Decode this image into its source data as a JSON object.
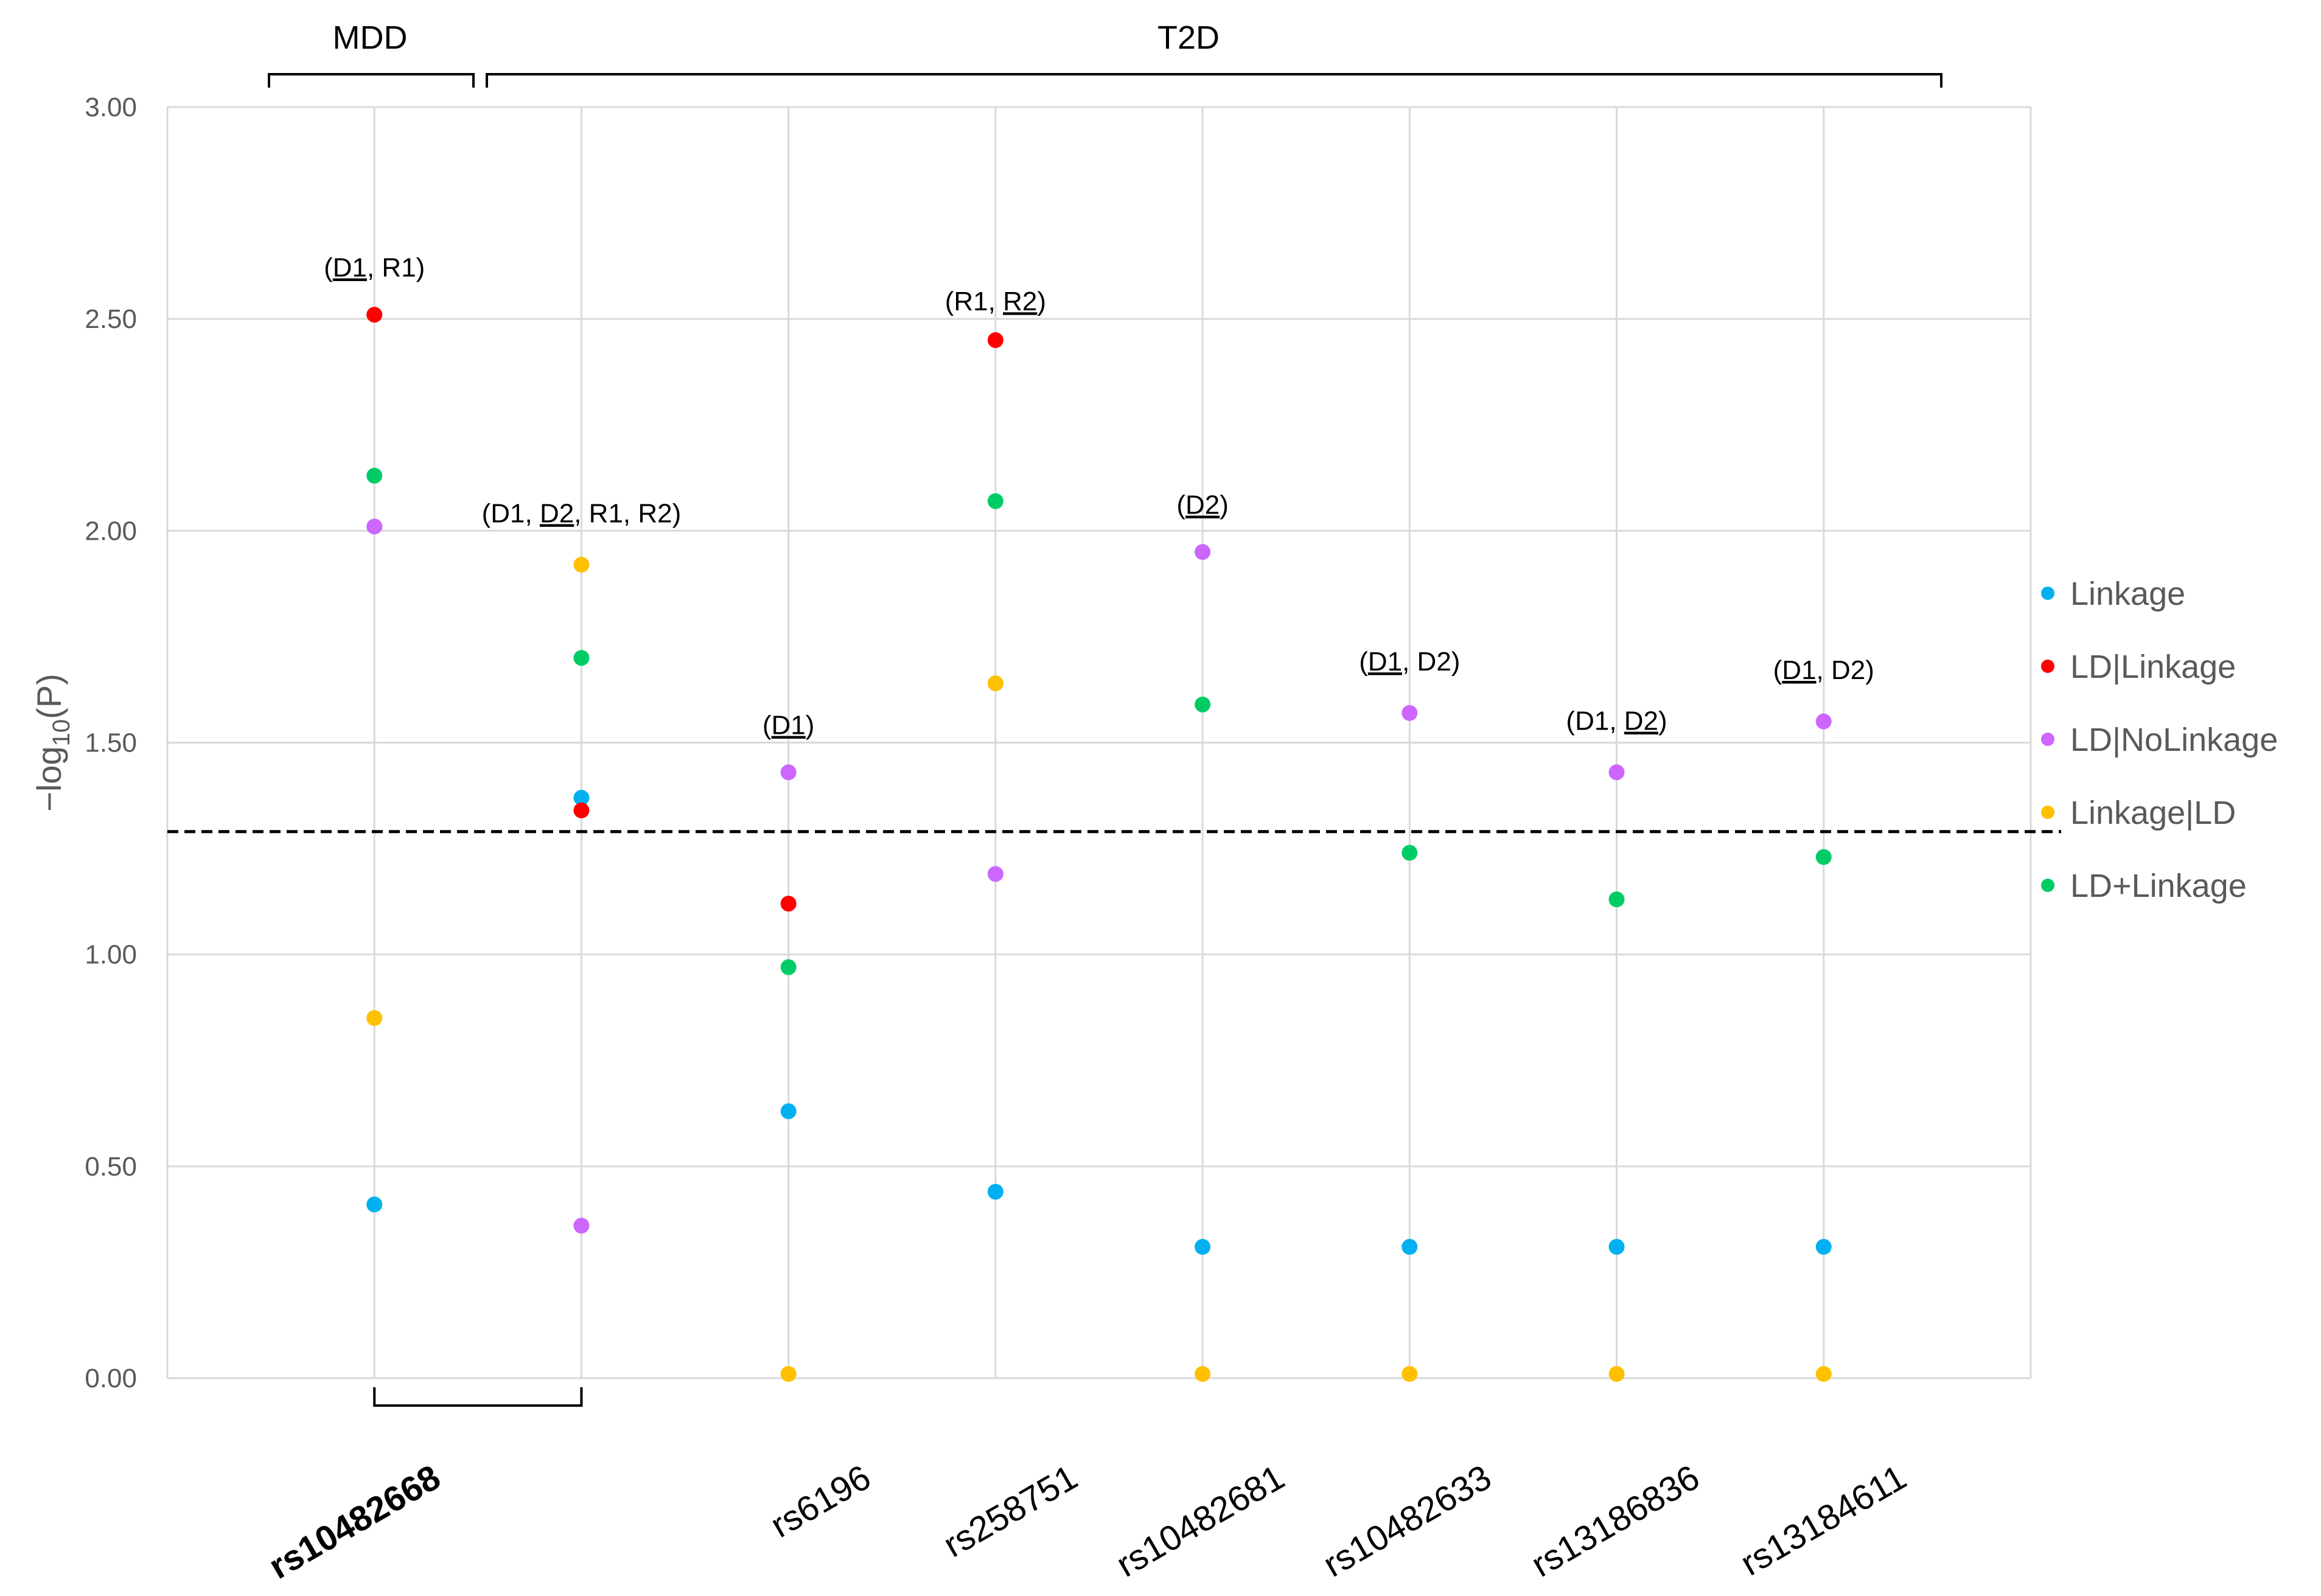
{
  "chart_data": {
    "type": "scatter",
    "ylabel": "-log10(P)",
    "ylabel_parts": {
      "main": "-log",
      "sub": "10",
      "tail": "(P)"
    },
    "ylim": [
      0,
      3
    ],
    "yticks": [
      "0.00",
      "0.50",
      "1.00",
      "1.50",
      "2.00",
      "2.50",
      "3.00"
    ],
    "ytick_values": [
      0,
      0.5,
      1,
      1.5,
      2,
      2.5,
      3
    ],
    "threshold": 1.29,
    "categories": [
      {
        "label": "rs10482668",
        "bold": true
      },
      {
        "label": "",
        "bold": false
      },
      {
        "label": "rs6196",
        "bold": false
      },
      {
        "label": "rs258751",
        "bold": false
      },
      {
        "label": "rs10482681",
        "bold": false
      },
      {
        "label": "rs10482633",
        "bold": false
      },
      {
        "label": "rs13186836",
        "bold": false
      },
      {
        "label": "rs13184611",
        "bold": false
      }
    ],
    "groups": [
      {
        "label": "MDD",
        "from": 0,
        "to": 0
      },
      {
        "label": "T2D",
        "from": 1,
        "to": 7
      }
    ],
    "series": [
      {
        "name": "Linkage",
        "color": "#00B0F0",
        "values": [
          0.41,
          1.37,
          0.63,
          0.44,
          0.31,
          0.31,
          0.31,
          0.31
        ]
      },
      {
        "name": "LD|Linkage",
        "color": "#FF0000",
        "values": [
          2.51,
          1.34,
          1.12,
          2.45,
          null,
          null,
          null,
          null
        ]
      },
      {
        "name": "LD|NoLinkage",
        "color": "#CC66FF",
        "values": [
          2.01,
          0.36,
          1.43,
          1.19,
          1.95,
          1.57,
          1.43,
          1.55
        ]
      },
      {
        "name": "Linkage|LD",
        "color": "#FFC000",
        "values": [
          0.85,
          1.92,
          0.01,
          1.64,
          0.01,
          0.01,
          0.01,
          0.01
        ]
      },
      {
        "name": "LD+Linkage",
        "color": "#00CC66",
        "values": [
          2.13,
          1.7,
          0.97,
          2.07,
          1.59,
          1.24,
          1.13,
          1.23
        ]
      }
    ],
    "annotations": [
      {
        "category": 0,
        "y": 2.6,
        "parts": [
          {
            "t": "(",
            "u": false
          },
          {
            "t": "D1",
            "u": true
          },
          {
            "t": ", R1)",
            "u": false
          }
        ]
      },
      {
        "category": 1,
        "y": 2.02,
        "parts": [
          {
            "t": "(D1, ",
            "u": false
          },
          {
            "t": "D2",
            "u": true
          },
          {
            "t": ", R1, R2)",
            "u": false
          }
        ]
      },
      {
        "category": 2,
        "y": 1.52,
        "parts": [
          {
            "t": "(",
            "u": false
          },
          {
            "t": "D1",
            "u": true
          },
          {
            "t": ")",
            "u": false
          }
        ]
      },
      {
        "category": 3,
        "y": 2.52,
        "parts": [
          {
            "t": "(R1, ",
            "u": false
          },
          {
            "t": "R2",
            "u": true
          },
          {
            "t": ")",
            "u": false
          }
        ]
      },
      {
        "category": 4,
        "y": 2.04,
        "parts": [
          {
            "t": "(",
            "u": false
          },
          {
            "t": "D2",
            "u": true
          },
          {
            "t": ")",
            "u": false
          }
        ]
      },
      {
        "category": 5,
        "y": 1.67,
        "parts": [
          {
            "t": "(",
            "u": false
          },
          {
            "t": "D1",
            "u": true
          },
          {
            "t": ", D2)",
            "u": false
          }
        ]
      },
      {
        "category": 6,
        "y": 1.53,
        "parts": [
          {
            "t": "(D1, ",
            "u": false
          },
          {
            "t": "D2",
            "u": true
          },
          {
            "t": ")",
            "u": false
          }
        ]
      },
      {
        "category": 7,
        "y": 1.65,
        "parts": [
          {
            "t": "(",
            "u": false
          },
          {
            "t": "D1",
            "u": true
          },
          {
            "t": ", D2)",
            "u": false
          }
        ]
      }
    ],
    "legend_position": "right"
  }
}
